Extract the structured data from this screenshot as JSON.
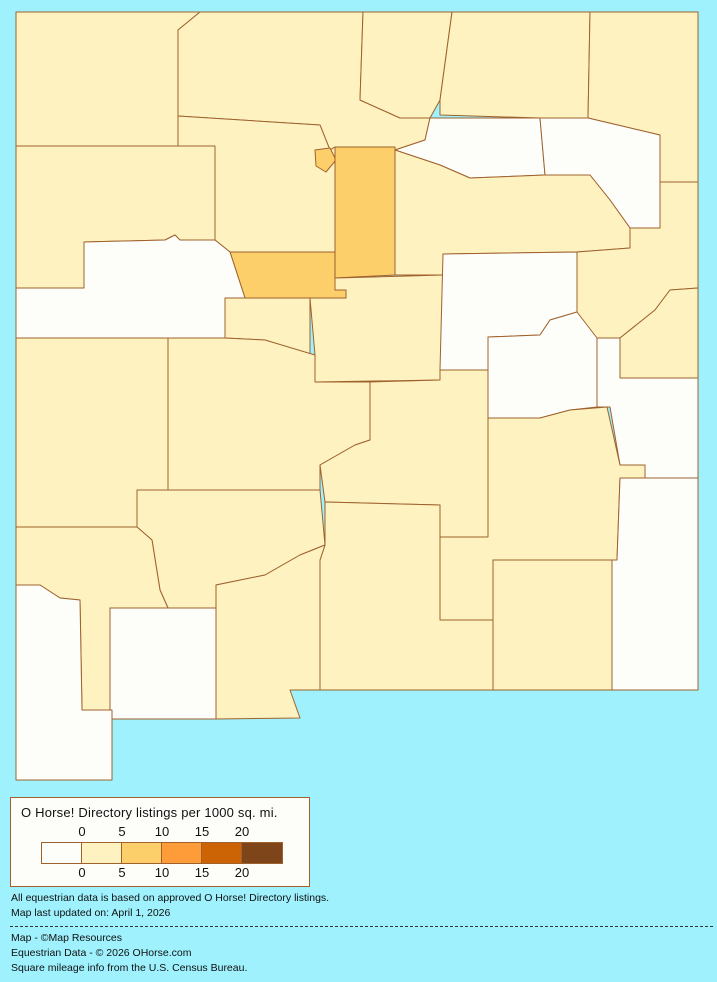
{
  "colors": {
    "background": "#9ef1fd",
    "border": "#a0622d",
    "bins": [
      "#fdfefa",
      "#fdf2c0",
      "#fdcf6a",
      "#fd9c38",
      "#cc6406",
      "#7d4519"
    ]
  },
  "legend": {
    "title": "O Horse! Directory listings per 1000 sq. mi.",
    "ticks_top": [
      "0",
      "5",
      "10",
      "15",
      "20"
    ],
    "ticks_bottom": [
      "0",
      "5",
      "10",
      "15",
      "20"
    ]
  },
  "notes": {
    "line1": "All equestrian data is based on approved O Horse! Directory listings.",
    "line2": "Map last updated on: April 1, 2026"
  },
  "credits": {
    "map": "Map - ©Map Resources",
    "data": "Equestrian Data - © 2026 OHorse.com",
    "census": "Square mileage info from the U.S. Census Bureau."
  },
  "counties": [
    {
      "bin": 1
    },
    {
      "bin": 1
    },
    {
      "bin": 1
    },
    {
      "bin": 1
    },
    {
      "bin": 1
    },
    {
      "bin": 0
    },
    {
      "bin": 0
    },
    {
      "bin": 1
    },
    {
      "bin": 1
    },
    {
      "bin": 2
    },
    {
      "bin": 2
    },
    {
      "bin": 2
    },
    {
      "bin": 1
    },
    {
      "bin": 1
    },
    {
      "bin": 1
    },
    {
      "bin": 0
    },
    {
      "bin": 1
    },
    {
      "bin": 1
    },
    {
      "bin": 0
    },
    {
      "bin": 0
    },
    {
      "bin": 0
    },
    {
      "bin": 1
    },
    {
      "bin": 1
    },
    {
      "bin": 1
    },
    {
      "bin": 1
    },
    {
      "bin": 1
    },
    {
      "bin": 0
    },
    {
      "bin": 1
    },
    {
      "bin": 1
    },
    {
      "bin": 1
    },
    {
      "bin": 1
    },
    {
      "bin": 0
    },
    {
      "bin": 0
    }
  ]
}
